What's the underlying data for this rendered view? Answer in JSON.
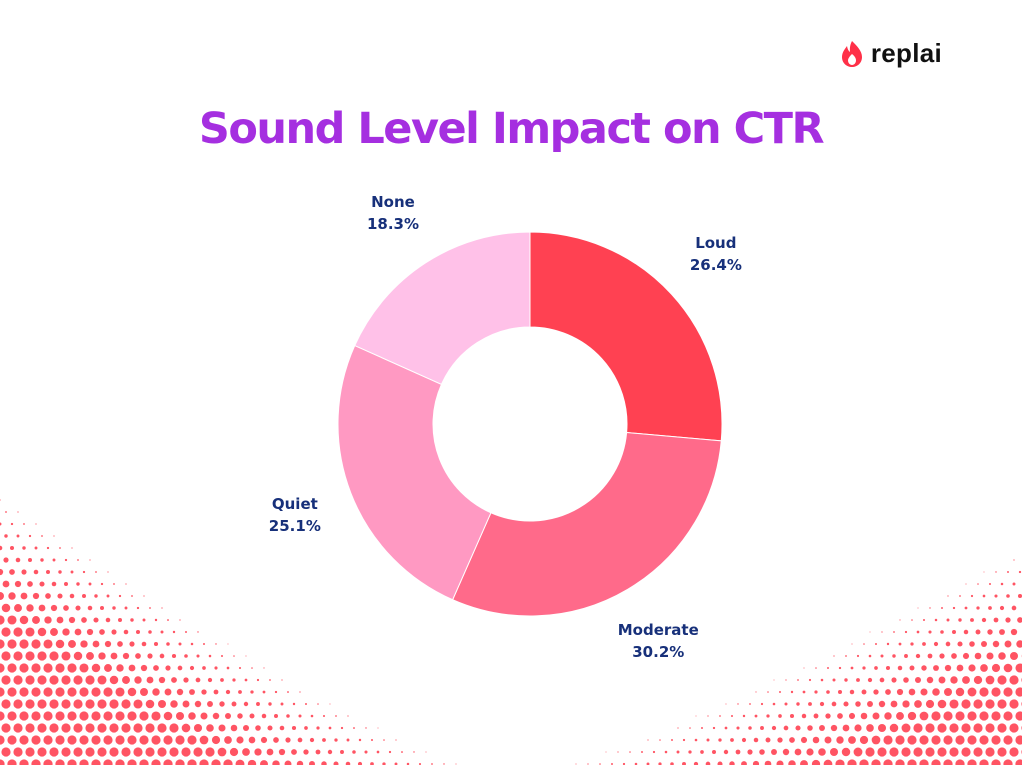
{
  "brand": {
    "name": "replai",
    "logo_icon": "flame-icon",
    "logo_color": "#ff3048"
  },
  "chart_data": {
    "type": "pie",
    "variant": "donut",
    "title": "Sound Level Impact on CTR",
    "slices": [
      {
        "label": "Loud",
        "value": 26.4,
        "display": "26.4%",
        "color": "#ff4152"
      },
      {
        "label": "Moderate",
        "value": 30.2,
        "display": "30.2%",
        "color": "#ff6a8a"
      },
      {
        "label": "Quiet",
        "value": 25.1,
        "display": "25.1%",
        "color": "#ff99c2"
      },
      {
        "label": "None",
        "value": 18.3,
        "display": "18.3%",
        "color": "#ffc1e8"
      }
    ],
    "start_angle_deg": 0,
    "direction": "clockwise",
    "legend": "none",
    "title_color": "#a52fe0",
    "label_color": "#17307a"
  },
  "decoration": {
    "pattern": "halftone-dots",
    "color": "#ff4152"
  }
}
